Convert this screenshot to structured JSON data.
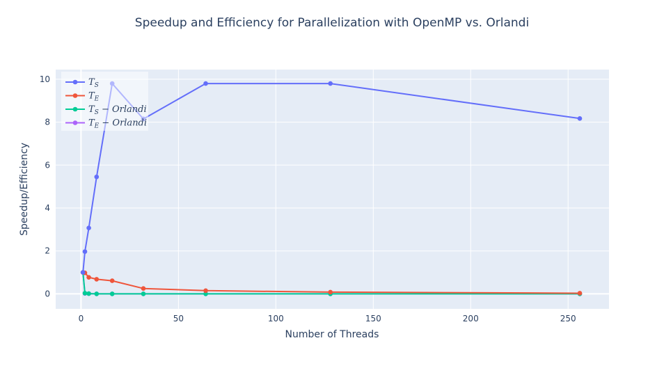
{
  "chart_data": {
    "type": "line",
    "title": "Speedup and Efficiency for Parallelization with OpenMP vs. Orlandi",
    "xlabel": "Number of Threads",
    "ylabel": "Speedup/Efficiency",
    "xlim": [
      -13,
      271
    ],
    "ylim": [
      -0.7,
      10.45
    ],
    "xticks": [
      0,
      50,
      100,
      150,
      200,
      250
    ],
    "yticks": [
      0,
      2,
      4,
      6,
      8,
      10
    ],
    "grid": true,
    "legend_position": "top-left",
    "background_color": "#e5ecf6",
    "series": [
      {
        "name": "T_S",
        "display": "TS",
        "color": "#636efa",
        "x": [
          1,
          2,
          4,
          8,
          16,
          32,
          64,
          128,
          256
        ],
        "y": [
          1.0,
          1.97,
          3.07,
          5.45,
          9.8,
          8.15,
          9.8,
          9.8,
          8.17
        ]
      },
      {
        "name": "T_E",
        "display": "TE",
        "color": "#ef553b",
        "x": [
          1,
          2,
          4,
          8,
          16,
          32,
          64,
          128,
          256
        ],
        "y": [
          1.0,
          0.98,
          0.77,
          0.68,
          0.61,
          0.25,
          0.15,
          0.08,
          0.03
        ]
      },
      {
        "name": "T_S − Orlandi",
        "display": "TS − Orlandi",
        "color": "#00cc96",
        "x": [
          1,
          2,
          4,
          8,
          16,
          32,
          64,
          128,
          256
        ],
        "y": [
          1.0,
          0.03,
          0.01,
          0.0,
          0.0,
          0.0,
          0.0,
          0.0,
          0.0
        ]
      },
      {
        "name": "T_E − Orlandi",
        "display": "TE − Orlandi",
        "color": "#ab63fa",
        "x": [
          1,
          2,
          4,
          8,
          16,
          32,
          64,
          128,
          256
        ],
        "y": [
          1.0,
          0.02,
          0.01,
          0.0,
          0.0,
          0.0,
          0.0,
          0.0,
          0.0
        ]
      }
    ],
    "legend": [
      {
        "base": "T",
        "sub": "S",
        "suffix": ""
      },
      {
        "base": "T",
        "sub": "E",
        "suffix": ""
      },
      {
        "base": "T",
        "sub": "S",
        "suffix": " − Orlandi"
      },
      {
        "base": "T",
        "sub": "E",
        "suffix": " − Orlandi"
      }
    ]
  }
}
